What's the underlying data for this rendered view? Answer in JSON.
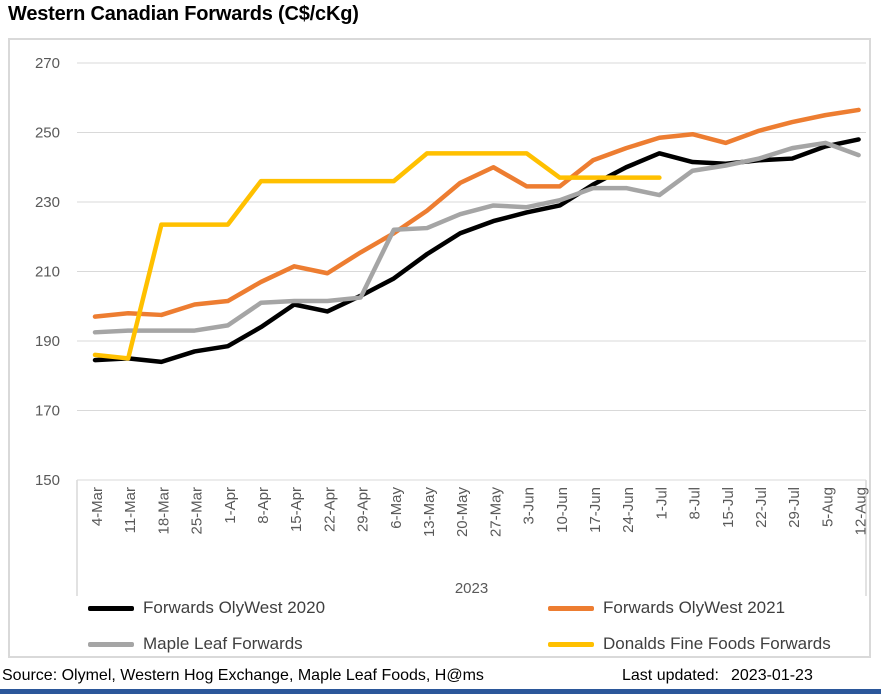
{
  "title": "Western Canadian Forwards (C$/cKg)",
  "chart_data": {
    "type": "line",
    "title": "Western Canadian Forwards (C$/cKg)",
    "grid": true,
    "legend_position": "bottom",
    "x_axis": {
      "year_label": "2023",
      "categories": [
        "4-Mar",
        "11-Mar",
        "18-Mar",
        "25-Mar",
        "1-Apr",
        "8-Apr",
        "15-Apr",
        "22-Apr",
        "29-Apr",
        "6-May",
        "13-May",
        "20-May",
        "27-May",
        "3-Jun",
        "10-Jun",
        "17-Jun",
        "24-Jun",
        "1-Jul",
        "8-Jul",
        "15-Jul",
        "22-Jul",
        "29-Jul",
        "5-Aug",
        "12-Aug"
      ]
    },
    "y_axis": {
      "min": 150,
      "max": 270,
      "step": 20,
      "ticks": [
        150,
        170,
        190,
        210,
        230,
        250,
        270
      ]
    },
    "series": [
      {
        "name": "Forwards OlyWest 2020",
        "color": "#000000",
        "values": [
          184.5,
          185,
          184,
          187,
          188.5,
          194,
          200.5,
          198.5,
          203,
          208,
          215,
          221,
          224.5,
          227,
          229,
          235,
          240,
          244,
          241.5,
          241,
          242,
          242.5,
          246,
          248
        ]
      },
      {
        "name": "Forwards OlyWest 2021",
        "color": "#ED7D31",
        "values": [
          197,
          198,
          197.5,
          200.5,
          201.5,
          207,
          211.5,
          209.5,
          215.5,
          221,
          227.5,
          235.5,
          240,
          234.5,
          234.5,
          242,
          245.5,
          248.5,
          249.5,
          247,
          250.5,
          253,
          255,
          256.5
        ]
      },
      {
        "name": "Maple Leaf Forwards",
        "color": "#A5A5A5",
        "values": [
          192.5,
          193,
          193,
          193,
          194.5,
          201,
          201.5,
          201.5,
          202.5,
          222,
          222.5,
          226.5,
          229,
          228.5,
          230.5,
          234,
          234,
          232,
          239,
          240.5,
          242.5,
          245.5,
          247,
          243.5
        ]
      },
      {
        "name": "Donalds Fine Foods Forwards",
        "color": "#FFC000",
        "values": [
          186,
          185,
          223.5,
          223.5,
          223.5,
          236,
          236,
          236,
          236,
          236,
          244,
          244,
          244,
          244,
          237,
          237,
          237,
          237,
          null,
          null,
          null,
          null,
          null,
          null
        ]
      }
    ]
  },
  "styles": {
    "gridline_color": "#D9D9D9",
    "axis_line_color": "#D9D9D9",
    "tick_text_color": "#595959",
    "line_width": 4.5
  },
  "footer": {
    "source": "Source: Olymel, Western Hog Exchange, Maple Leaf Foods, H@ms",
    "last_updated_label": "Last updated:",
    "last_updated_value": "2023-01-23",
    "bottom_bar_color": "#2B579A"
  }
}
